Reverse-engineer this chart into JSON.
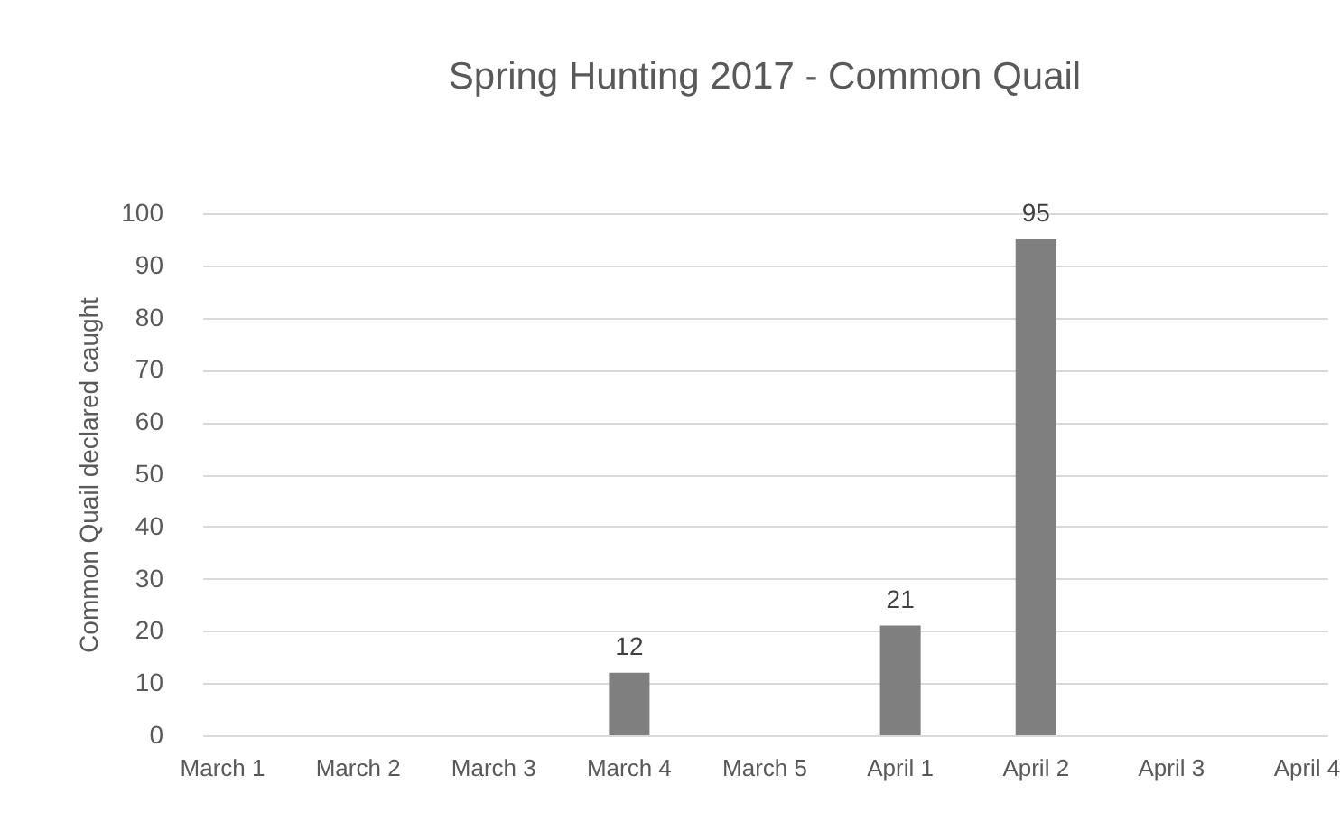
{
  "chart_data": {
    "type": "bar",
    "title": "Spring Hunting 2017 - Common Quail",
    "ylabel": "Common Quail declared caught",
    "categories": [
      "March 1",
      "March 2",
      "March 3",
      "March 4",
      "March 5",
      "April 1",
      "April 2",
      "April 3",
      "April 4"
    ],
    "values": [
      null,
      null,
      null,
      12,
      null,
      21,
      95,
      null,
      null
    ],
    "color": "#7f7f7f",
    "ylim": [
      0,
      100
    ],
    "yticks": [
      0,
      10,
      20,
      30,
      40,
      50,
      60,
      70,
      80,
      90,
      100
    ],
    "grid": "y",
    "data_labels": true
  }
}
